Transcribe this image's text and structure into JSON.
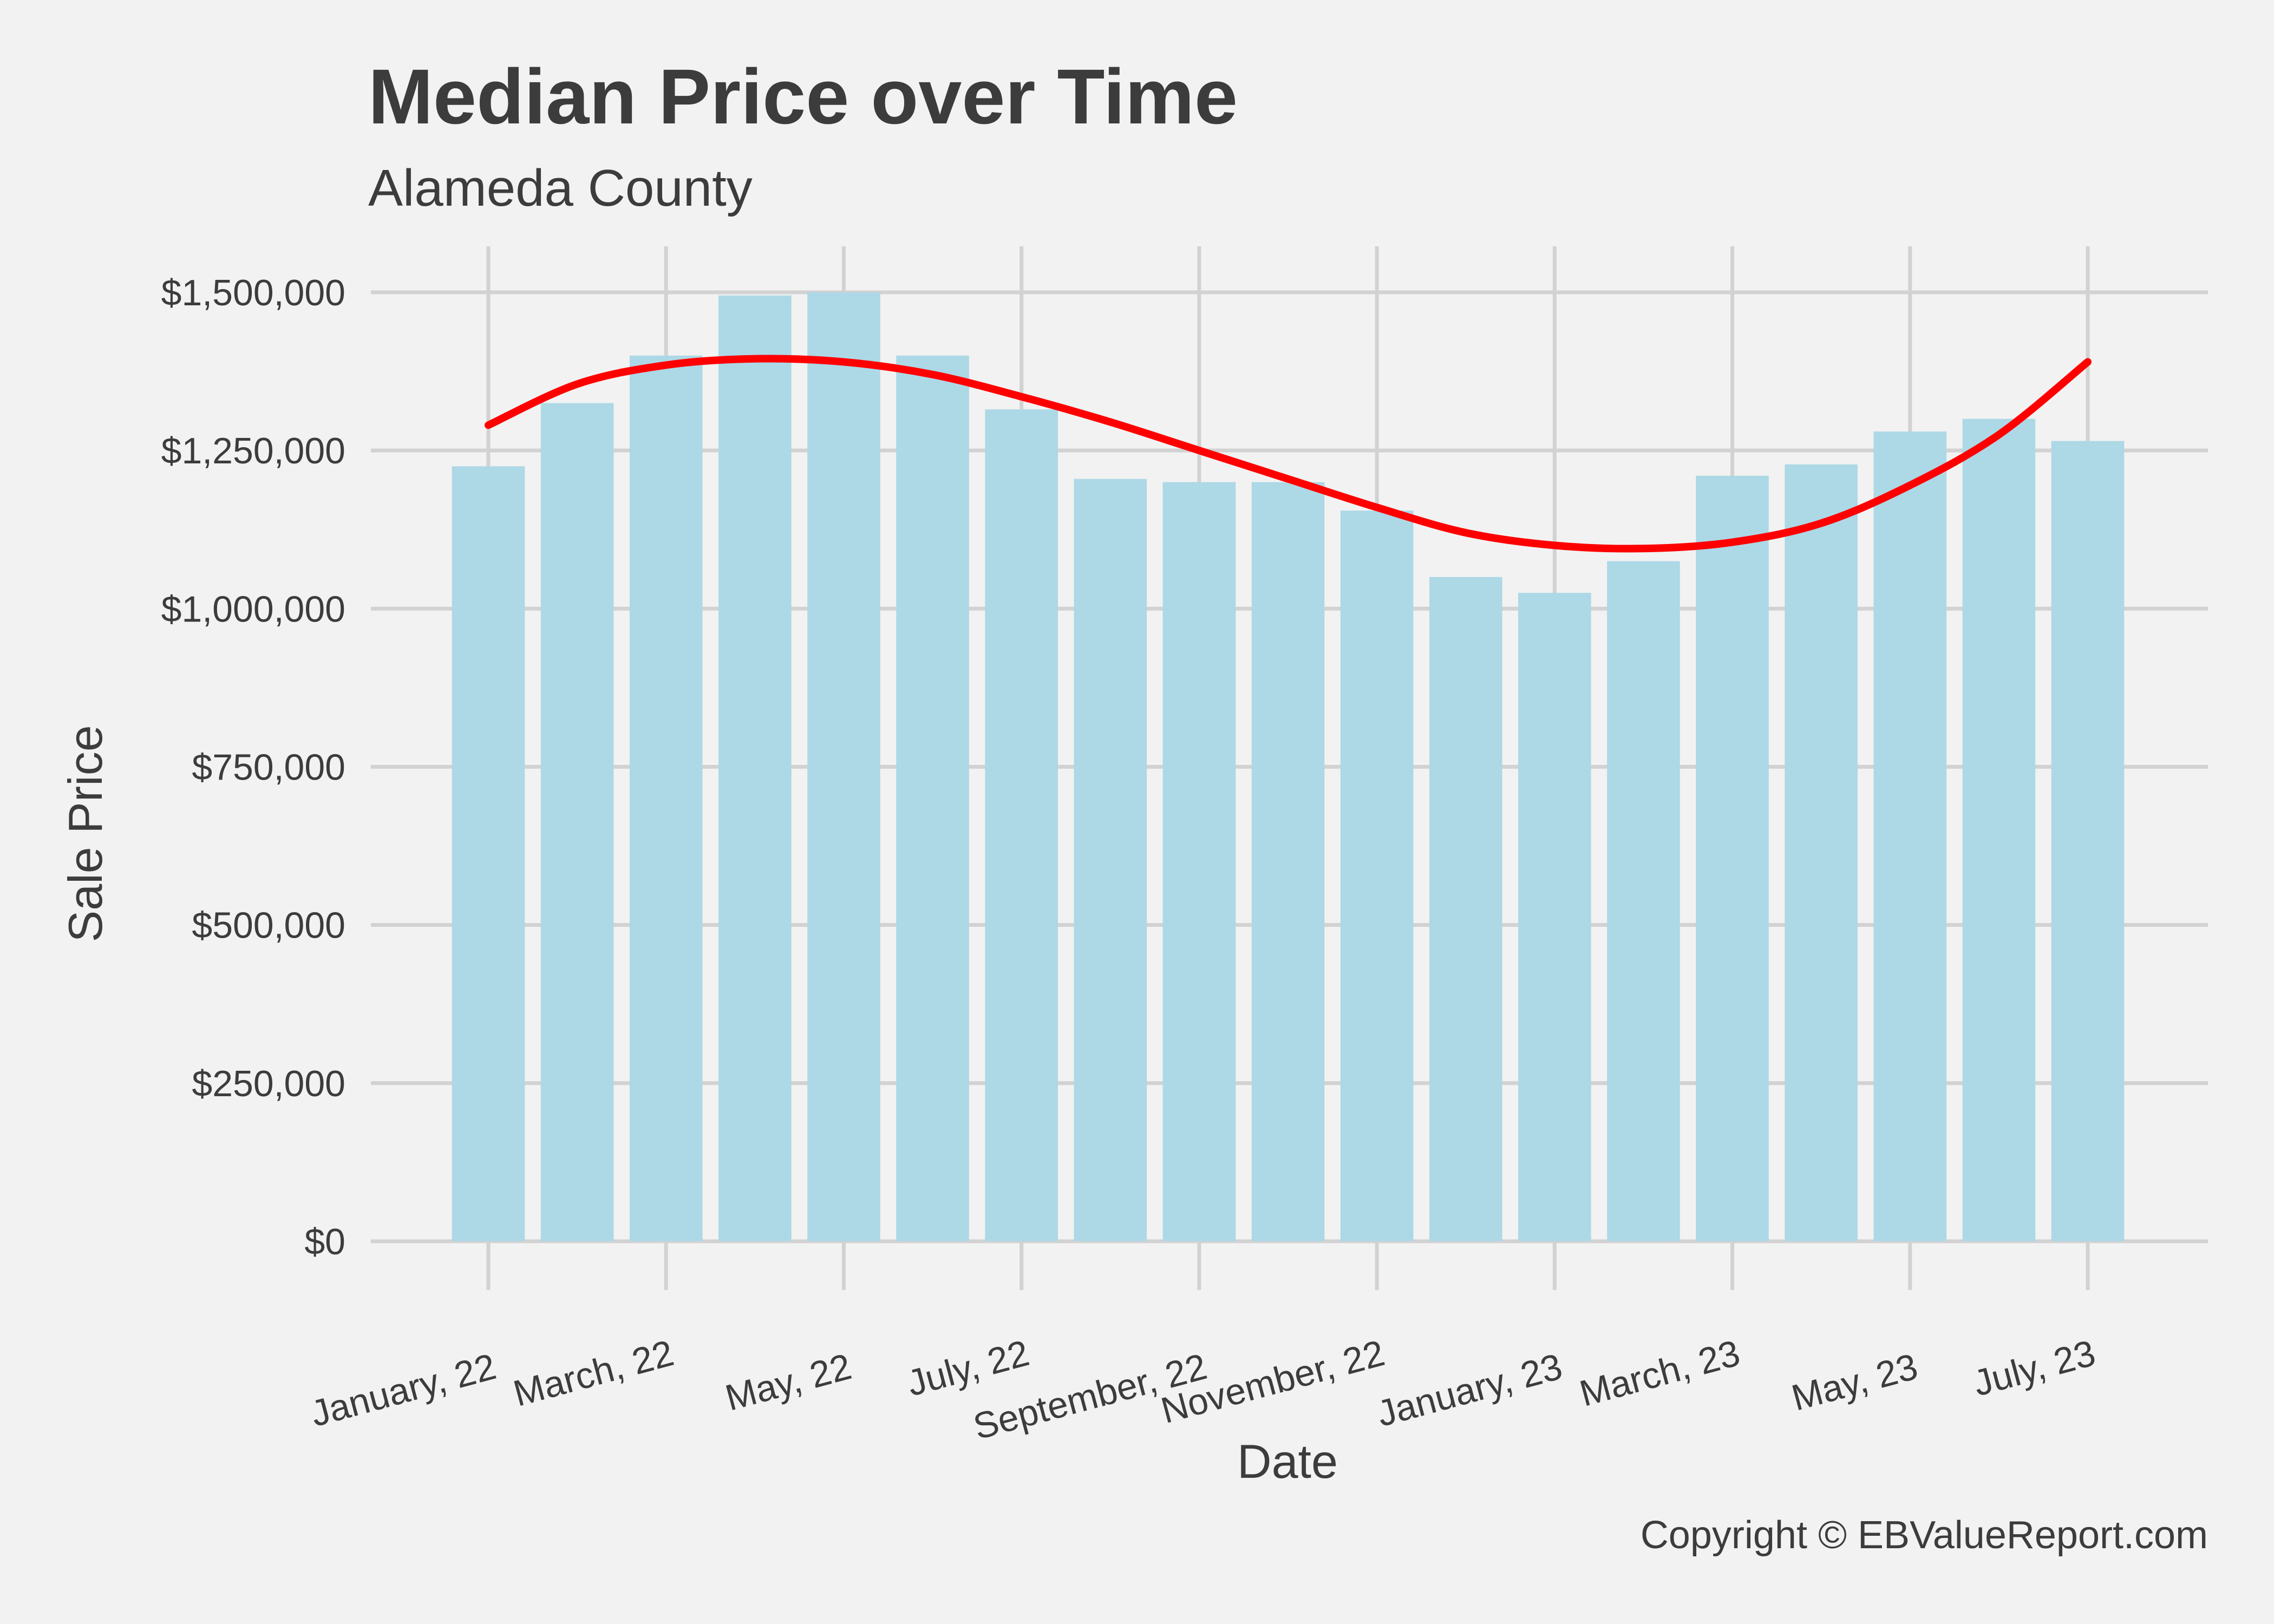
{
  "chart_data": {
    "type": "bar",
    "title": "Median Price over Time",
    "subtitle": "Alameda County",
    "xlabel": "Date",
    "ylabel": "Sale Price",
    "caption": "Copyright  © EBValueReport.com",
    "ylim": [
      0,
      1500000
    ],
    "y_ticks": [
      {
        "value": 0,
        "label": "$0"
      },
      {
        "value": 250000,
        "label": "$250,000"
      },
      {
        "value": 500000,
        "label": "$500,000"
      },
      {
        "value": 750000,
        "label": "$750,000"
      },
      {
        "value": 1000000,
        "label": "$1,000,000"
      },
      {
        "value": 1250000,
        "label": "$1,250,000"
      },
      {
        "value": 1500000,
        "label": "$1,500,000"
      }
    ],
    "x_ticks": [
      {
        "date": "2022-01",
        "label": "January, 22"
      },
      {
        "date": "2022-03",
        "label": "March, 22"
      },
      {
        "date": "2022-05",
        "label": "May, 22"
      },
      {
        "date": "2022-07",
        "label": "July, 22"
      },
      {
        "date": "2022-09",
        "label": "September, 22"
      },
      {
        "date": "2022-11",
        "label": "November, 22"
      },
      {
        "date": "2023-01",
        "label": "January, 23"
      },
      {
        "date": "2023-03",
        "label": "March, 23"
      },
      {
        "date": "2023-05",
        "label": "May, 23"
      },
      {
        "date": "2023-07",
        "label": "July, 23"
      }
    ],
    "categories": [
      "2022-01",
      "2022-02",
      "2022-03",
      "2022-04",
      "2022-05",
      "2022-06",
      "2022-07",
      "2022-08",
      "2022-09",
      "2022-10",
      "2022-11",
      "2022-12",
      "2023-01",
      "2023-02",
      "2023-03",
      "2023-04",
      "2023-05",
      "2023-06",
      "2023-07"
    ],
    "values": [
      1225000,
      1325000,
      1400000,
      1495000,
      1500000,
      1400000,
      1315000,
      1205000,
      1200000,
      1200000,
      1155000,
      1050000,
      1025000,
      1075000,
      1210000,
      1228000,
      1280000,
      1300000,
      1265000
    ],
    "smooth_line": {
      "x": [
        "2022-01",
        "2022-02",
        "2022-03",
        "2022-04",
        "2022-05",
        "2022-06",
        "2022-07",
        "2022-08",
        "2022-09",
        "2022-10",
        "2022-11",
        "2022-12",
        "2023-01",
        "2023-02",
        "2023-03",
        "2023-04",
        "2023-05",
        "2023-06",
        "2023-07"
      ],
      "y": [
        1290000,
        1355000,
        1385000,
        1395000,
        1390000,
        1370000,
        1335000,
        1295000,
        1250000,
        1205000,
        1160000,
        1120000,
        1100000,
        1095000,
        1105000,
        1135000,
        1195000,
        1275000,
        1390000
      ]
    },
    "colors": {
      "bar": "#add8e6",
      "line": "#ff0000",
      "background": "#f2f2f2",
      "grid": "#d2d2d2",
      "text": "#3c3c3c"
    },
    "grid": true,
    "legend": "none"
  }
}
